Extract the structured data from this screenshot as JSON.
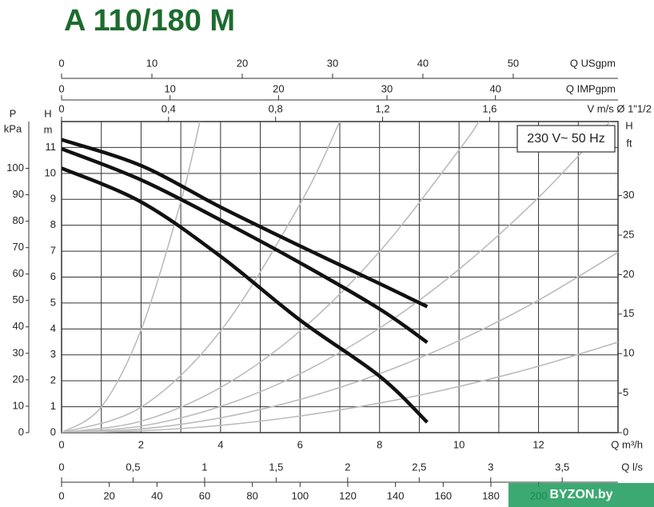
{
  "chart_data": {
    "type": "line",
    "title": "A 110/180 M",
    "xlabel": "Q m³/h",
    "ylabel": "H",
    "yunit": "m",
    "xlim": [
      0,
      14
    ],
    "ylim": [
      0,
      12
    ],
    "xticks": [
      0,
      2,
      4,
      6,
      8,
      10,
      12
    ],
    "xgrid": [
      0,
      1,
      2,
      3,
      4,
      5,
      6,
      7,
      8,
      9,
      10,
      11,
      12,
      13,
      14
    ],
    "yticks": [
      0,
      1,
      2,
      3,
      4,
      5,
      6,
      7,
      8,
      9,
      10,
      11
    ],
    "grid": true,
    "annotation": "230 V~ 50 Hz",
    "watermark": "BYZON.by",
    "top_axes": [
      {
        "label": "Q USgpm",
        "lim": [
          0,
          61.6
        ],
        "ticks": [
          0,
          10,
          20,
          30,
          40,
          50
        ]
      },
      {
        "label": "Q IMPgpm",
        "lim": [
          0,
          51.3
        ],
        "ticks": [
          0,
          10,
          20,
          30,
          40
        ]
      },
      {
        "label": "V m/s Ø 1\"1/2",
        "lim": [
          0,
          2.08
        ],
        "ticks": [
          0,
          {
            "value": 0.4,
            "label": "0,4"
          },
          {
            "value": 0.8,
            "label": "0,8"
          },
          {
            "value": 1.2,
            "label": "1,2"
          },
          {
            "value": 1.6,
            "label": "1,6"
          }
        ]
      }
    ],
    "bottom_axes": [
      {
        "label": "Q l/s",
        "lim": [
          0,
          3.89
        ],
        "ticks": [
          0,
          {
            "value": 0.5,
            "label": "0,5"
          },
          1,
          {
            "value": 1.5,
            "label": "1,5"
          },
          2,
          {
            "value": 2.5,
            "label": "2,5"
          },
          3,
          {
            "value": 3.5,
            "label": "3,5"
          }
        ]
      },
      {
        "lim": [
          0,
          233.3
        ],
        "ticks": [
          0,
          20,
          40,
          60,
          80,
          100,
          120,
          140,
          160,
          180,
          200
        ]
      }
    ],
    "left_axis": {
      "label": "P",
      "unit": "kPa",
      "lim": [
        0,
        117.7
      ],
      "ticks": [
        0,
        10,
        20,
        30,
        40,
        50,
        60,
        70,
        80,
        90,
        100
      ]
    },
    "y2label": "H",
    "y2unit": "ft",
    "y2lim": [
      0,
      39.37
    ],
    "y2ticks": [
      0,
      5,
      10,
      15,
      20,
      25,
      30
    ],
    "series": [
      {
        "color": "#111111",
        "x": [
          0,
          2,
          4,
          6,
          8,
          9.2
        ],
        "values": [
          11.3,
          10.3,
          8.7,
          7.2,
          5.75,
          4.86
        ]
      },
      {
        "color": "#111111",
        "x": [
          0,
          2,
          4,
          6,
          8,
          9.2
        ],
        "values": [
          10.95,
          9.75,
          8.2,
          6.55,
          4.77,
          3.48
        ]
      },
      {
        "color": "#111111",
        "x": [
          0,
          2,
          4,
          6,
          8,
          9.2
        ],
        "values": [
          10.2,
          8.9,
          6.8,
          4.34,
          2.18,
          0.4
        ]
      },
      {
        "color": "#bbbbbb",
        "x": [
          0,
          1,
          2,
          3,
          3.48
        ],
        "values": [
          0,
          0.99,
          3.96,
          8.91,
          12
        ]
      },
      {
        "color": "#bbbbbb",
        "x": [
          0,
          2,
          4,
          6,
          7
        ],
        "values": [
          0,
          0.98,
          3.92,
          8.82,
          12
        ]
      },
      {
        "color": "#bbbbbb",
        "x": [
          0,
          2,
          4,
          6,
          8,
          10,
          10.5
        ],
        "values": [
          0,
          0.44,
          1.74,
          3.92,
          6.98,
          10.9,
          12
        ]
      },
      {
        "color": "#bbbbbb",
        "x": [
          0,
          2,
          4,
          6,
          8,
          10,
          12,
          13.8
        ],
        "values": [
          0,
          0.25,
          1.01,
          2.27,
          4.03,
          6.3,
          9.07,
          12
        ]
      },
      {
        "color": "#bbbbbb",
        "x": [
          0,
          2,
          4,
          6,
          8,
          10,
          12,
          14
        ],
        "values": [
          0,
          0.14,
          0.57,
          1.28,
          2.27,
          3.55,
          5.11,
          6.96
        ]
      },
      {
        "color": "#bbbbbb",
        "x": [
          0,
          2,
          4,
          6,
          8,
          10,
          12,
          14
        ],
        "values": [
          0,
          0.07,
          0.28,
          0.64,
          1.14,
          1.78,
          2.56,
          3.49
        ]
      }
    ]
  }
}
